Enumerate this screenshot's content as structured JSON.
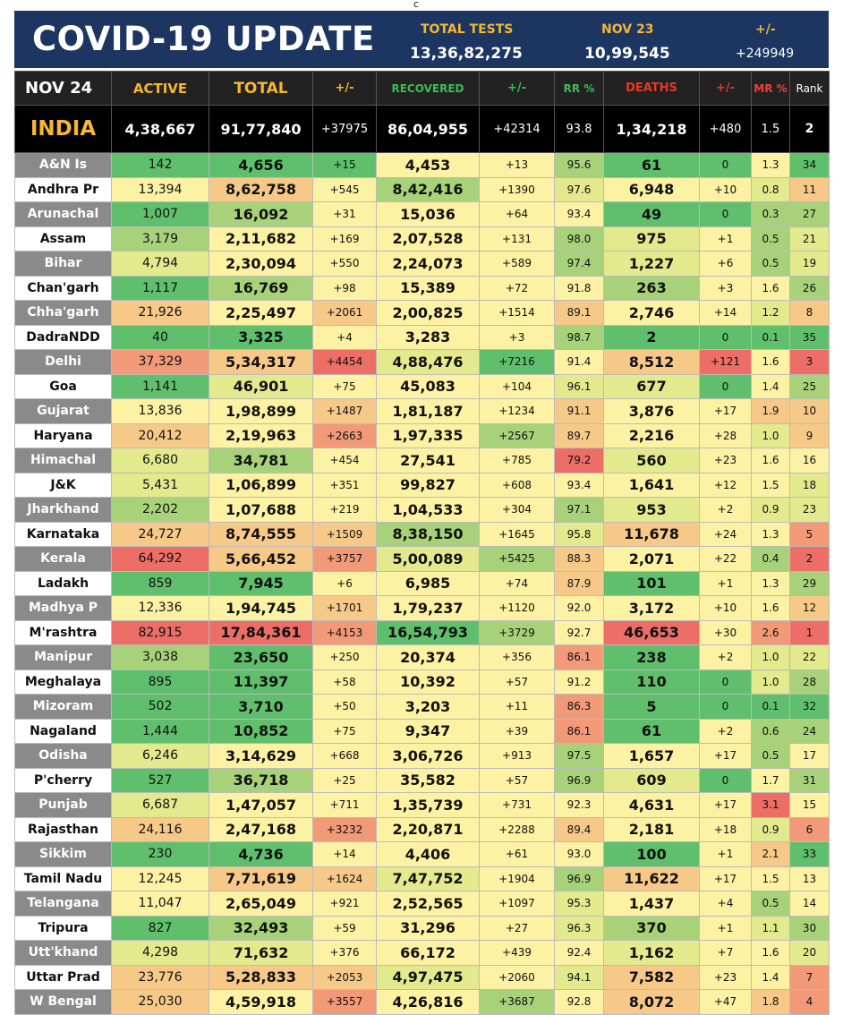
{
  "stamp": "c",
  "header": {
    "title": "COVID-19 UPDATE",
    "total_tests_label": "TOTAL TESTS",
    "total_tests_value": "13,36,82,275",
    "date_label": "NOV 23",
    "date_value": "10,99,545",
    "delta_label": "+/-",
    "delta_value": "+249949"
  },
  "columns": {
    "date": "NOV 24",
    "active": "ACTIVE",
    "total": "TOTAL",
    "total_delta": "+/-",
    "recovered": "RECOVERED",
    "recovered_delta": "+/-",
    "rr": "RR %",
    "deaths": "DEATHS",
    "deaths_delta": "+/-",
    "mr": "MR %",
    "rank": "Rank"
  },
  "colors": {
    "banner": "#1d3561",
    "label_yellow": "#f5b82e",
    "recovered_green": "#3dbb54",
    "deaths_red": "#e8382a",
    "mr_red": "#ef4136",
    "heat_scale": [
      "#5fbf6c",
      "#a8d27a",
      "#e3e98d",
      "#fdf1a3",
      "#f7c989",
      "#f29a77",
      "#ec6e66"
    ]
  },
  "national": {
    "name": "INDIA",
    "active": "4,38,667",
    "total": "91,77,840",
    "total_delta": "+37975",
    "recovered": "86,04,955",
    "recovered_delta": "+42314",
    "rr": "93.8",
    "deaths": "1,34,218",
    "deaths_delta": "+480",
    "mr": "1.5",
    "rank": "2"
  },
  "rows": [
    {
      "name": "A&N Is",
      "active": "142",
      "total": "4,656",
      "total_delta": "+15",
      "recovered": "4,453",
      "recovered_delta": "+13",
      "rr": "95.6",
      "deaths": "61",
      "deaths_delta": "0",
      "mr": "1.3",
      "rank": "34",
      "h": [
        0,
        0,
        0,
        3,
        3,
        1,
        0,
        0,
        3,
        0
      ]
    },
    {
      "name": "Andhra Pr",
      "active": "13,394",
      "total": "8,62,758",
      "total_delta": "+545",
      "recovered": "8,42,416",
      "recovered_delta": "+1390",
      "rr": "97.6",
      "deaths": "6,948",
      "deaths_delta": "+10",
      "mr": "0.8",
      "rank": "11",
      "h": [
        3,
        4,
        3,
        1,
        3,
        2,
        3,
        3,
        2,
        4
      ]
    },
    {
      "name": "Arunachal",
      "active": "1,007",
      "total": "16,092",
      "total_delta": "+31",
      "recovered": "15,036",
      "recovered_delta": "+64",
      "rr": "93.4",
      "deaths": "49",
      "deaths_delta": "0",
      "mr": "0.3",
      "rank": "27",
      "h": [
        0,
        1,
        3,
        3,
        3,
        3,
        0,
        0,
        1,
        1
      ]
    },
    {
      "name": "Assam",
      "active": "3,179",
      "total": "2,11,682",
      "total_delta": "+169",
      "recovered": "2,07,528",
      "recovered_delta": "+131",
      "rr": "98.0",
      "deaths": "975",
      "deaths_delta": "+1",
      "mr": "0.5",
      "rank": "21",
      "h": [
        1,
        3,
        3,
        3,
        3,
        1,
        2,
        3,
        1,
        2
      ]
    },
    {
      "name": "Bihar",
      "active": "4,794",
      "total": "2,30,094",
      "total_delta": "+550",
      "recovered": "2,24,073",
      "recovered_delta": "+589",
      "rr": "97.4",
      "deaths": "1,227",
      "deaths_delta": "+6",
      "mr": "0.5",
      "rank": "19",
      "h": [
        2,
        3,
        3,
        3,
        3,
        1,
        2,
        3,
        1,
        2
      ]
    },
    {
      "name": "Chan'garh",
      "active": "1,117",
      "total": "16,769",
      "total_delta": "+98",
      "recovered": "15,389",
      "recovered_delta": "+72",
      "rr": "91.8",
      "deaths": "263",
      "deaths_delta": "+3",
      "mr": "1.6",
      "rank": "26",
      "h": [
        0,
        1,
        3,
        3,
        3,
        3,
        1,
        3,
        3,
        1
      ]
    },
    {
      "name": "Chha'garh",
      "active": "21,926",
      "total": "2,25,497",
      "total_delta": "+2061",
      "recovered": "2,00,825",
      "recovered_delta": "+1514",
      "rr": "89.1",
      "deaths": "2,746",
      "deaths_delta": "+14",
      "mr": "1.2",
      "rank": "8",
      "h": [
        4,
        3,
        4,
        3,
        3,
        4,
        3,
        3,
        2,
        4
      ]
    },
    {
      "name": "DadraNDD",
      "active": "40",
      "total": "3,325",
      "total_delta": "+4",
      "recovered": "3,283",
      "recovered_delta": "+3",
      "rr": "98.7",
      "deaths": "2",
      "deaths_delta": "0",
      "mr": "0.1",
      "rank": "35",
      "h": [
        0,
        0,
        3,
        3,
        3,
        1,
        0,
        0,
        0,
        0
      ]
    },
    {
      "name": "Delhi",
      "active": "37,329",
      "total": "5,34,317",
      "total_delta": "+4454",
      "recovered": "4,88,476",
      "recovered_delta": "+7216",
      "rr": "91.4",
      "deaths": "8,512",
      "deaths_delta": "+121",
      "mr": "1.6",
      "rank": "3",
      "h": [
        5,
        4,
        6,
        2,
        0,
        3,
        4,
        6,
        3,
        6
      ]
    },
    {
      "name": "Goa",
      "active": "1,141",
      "total": "46,901",
      "total_delta": "+75",
      "recovered": "45,083",
      "recovered_delta": "+104",
      "rr": "96.1",
      "deaths": "677",
      "deaths_delta": "0",
      "mr": "1.4",
      "rank": "25",
      "h": [
        0,
        2,
        3,
        3,
        3,
        2,
        2,
        0,
        3,
        1
      ]
    },
    {
      "name": "Gujarat",
      "active": "13,836",
      "total": "1,98,899",
      "total_delta": "+1487",
      "recovered": "1,81,187",
      "recovered_delta": "+1234",
      "rr": "91.1",
      "deaths": "3,876",
      "deaths_delta": "+17",
      "mr": "1.9",
      "rank": "10",
      "h": [
        3,
        3,
        4,
        3,
        3,
        4,
        3,
        3,
        4,
        4
      ]
    },
    {
      "name": "Haryana",
      "active": "20,412",
      "total": "2,19,963",
      "total_delta": "+2663",
      "recovered": "1,97,335",
      "recovered_delta": "+2567",
      "rr": "89.7",
      "deaths": "2,216",
      "deaths_delta": "+28",
      "mr": "1.0",
      "rank": "9",
      "h": [
        4,
        3,
        5,
        3,
        1,
        4,
        3,
        3,
        2,
        4
      ]
    },
    {
      "name": "Himachal",
      "active": "6,680",
      "total": "34,781",
      "total_delta": "+454",
      "recovered": "27,541",
      "recovered_delta": "+785",
      "rr": "79.2",
      "deaths": "560",
      "deaths_delta": "+23",
      "mr": "1.6",
      "rank": "16",
      "h": [
        2,
        1,
        3,
        3,
        3,
        6,
        2,
        3,
        3,
        3
      ]
    },
    {
      "name": "J&K",
      "active": "5,431",
      "total": "1,06,899",
      "total_delta": "+351",
      "recovered": "99,827",
      "recovered_delta": "+608",
      "rr": "93.4",
      "deaths": "1,641",
      "deaths_delta": "+12",
      "mr": "1.5",
      "rank": "18",
      "h": [
        2,
        3,
        3,
        3,
        3,
        3,
        3,
        3,
        3,
        2
      ]
    },
    {
      "name": "Jharkhand",
      "active": "2,202",
      "total": "1,07,688",
      "total_delta": "+219",
      "recovered": "1,04,533",
      "recovered_delta": "+304",
      "rr": "97.1",
      "deaths": "953",
      "deaths_delta": "+2",
      "mr": "0.9",
      "rank": "23",
      "h": [
        1,
        3,
        3,
        3,
        3,
        1,
        2,
        3,
        2,
        2
      ]
    },
    {
      "name": "Karnataka",
      "active": "24,727",
      "total": "8,74,555",
      "total_delta": "+1509",
      "recovered": "8,38,150",
      "recovered_delta": "+1645",
      "rr": "95.8",
      "deaths": "11,678",
      "deaths_delta": "+24",
      "mr": "1.3",
      "rank": "5",
      "h": [
        4,
        4,
        4,
        1,
        3,
        2,
        4,
        3,
        3,
        5
      ]
    },
    {
      "name": "Kerala",
      "active": "64,292",
      "total": "5,66,452",
      "total_delta": "+3757",
      "recovered": "5,00,089",
      "recovered_delta": "+5425",
      "rr": "88.3",
      "deaths": "2,071",
      "deaths_delta": "+22",
      "mr": "0.4",
      "rank": "2",
      "h": [
        6,
        4,
        5,
        2,
        1,
        4,
        3,
        3,
        1,
        6
      ]
    },
    {
      "name": "Ladakh",
      "active": "859",
      "total": "7,945",
      "total_delta": "+6",
      "recovered": "6,985",
      "recovered_delta": "+74",
      "rr": "87.9",
      "deaths": "101",
      "deaths_delta": "+1",
      "mr": "1.3",
      "rank": "29",
      "h": [
        0,
        0,
        3,
        3,
        3,
        4,
        0,
        3,
        3,
        1
      ]
    },
    {
      "name": "Madhya P",
      "active": "12,336",
      "total": "1,94,745",
      "total_delta": "+1701",
      "recovered": "1,79,237",
      "recovered_delta": "+1120",
      "rr": "92.0",
      "deaths": "3,172",
      "deaths_delta": "+10",
      "mr": "1.6",
      "rank": "12",
      "h": [
        3,
        3,
        4,
        3,
        3,
        3,
        3,
        3,
        3,
        4
      ]
    },
    {
      "name": "M'rashtra",
      "active": "82,915",
      "total": "17,84,361",
      "total_delta": "+4153",
      "recovered": "16,54,793",
      "recovered_delta": "+3729",
      "rr": "92.7",
      "deaths": "46,653",
      "deaths_delta": "+30",
      "mr": "2.6",
      "rank": "1",
      "h": [
        6,
        6,
        5,
        0,
        1,
        3,
        6,
        3,
        5,
        6
      ]
    },
    {
      "name": "Manipur",
      "active": "3,038",
      "total": "23,650",
      "total_delta": "+250",
      "recovered": "20,374",
      "recovered_delta": "+356",
      "rr": "86.1",
      "deaths": "238",
      "deaths_delta": "+2",
      "mr": "1.0",
      "rank": "22",
      "h": [
        1,
        0,
        3,
        3,
        3,
        5,
        0,
        3,
        2,
        2
      ]
    },
    {
      "name": "Meghalaya",
      "active": "895",
      "total": "11,397",
      "total_delta": "+58",
      "recovered": "10,392",
      "recovered_delta": "+57",
      "rr": "91.2",
      "deaths": "110",
      "deaths_delta": "0",
      "mr": "1.0",
      "rank": "28",
      "h": [
        0,
        0,
        3,
        3,
        3,
        3,
        0,
        0,
        2,
        1
      ]
    },
    {
      "name": "Mizoram",
      "active": "502",
      "total": "3,710",
      "total_delta": "+50",
      "recovered": "3,203",
      "recovered_delta": "+11",
      "rr": "86.3",
      "deaths": "5",
      "deaths_delta": "0",
      "mr": "0.1",
      "rank": "32",
      "h": [
        0,
        0,
        3,
        3,
        3,
        5,
        0,
        0,
        0,
        0
      ]
    },
    {
      "name": "Nagaland",
      "active": "1,444",
      "total": "10,852",
      "total_delta": "+75",
      "recovered": "9,347",
      "recovered_delta": "+39",
      "rr": "86.1",
      "deaths": "61",
      "deaths_delta": "+2",
      "mr": "0.6",
      "rank": "24",
      "h": [
        0,
        0,
        3,
        3,
        3,
        5,
        0,
        3,
        1,
        1
      ]
    },
    {
      "name": "Odisha",
      "active": "6,246",
      "total": "3,14,629",
      "total_delta": "+668",
      "recovered": "3,06,726",
      "recovered_delta": "+913",
      "rr": "97.5",
      "deaths": "1,657",
      "deaths_delta": "+17",
      "mr": "0.5",
      "rank": "17",
      "h": [
        2,
        3,
        3,
        3,
        3,
        1,
        3,
        3,
        1,
        3
      ]
    },
    {
      "name": "P'cherry",
      "active": "527",
      "total": "36,718",
      "total_delta": "+25",
      "recovered": "35,582",
      "recovered_delta": "+57",
      "rr": "96.9",
      "deaths": "609",
      "deaths_delta": "0",
      "mr": "1.7",
      "rank": "31",
      "h": [
        0,
        1,
        3,
        3,
        3,
        1,
        2,
        0,
        3,
        1
      ]
    },
    {
      "name": "Punjab",
      "active": "6,687",
      "total": "1,47,057",
      "total_delta": "+711",
      "recovered": "1,35,739",
      "recovered_delta": "+731",
      "rr": "92.3",
      "deaths": "4,631",
      "deaths_delta": "+17",
      "mr": "3.1",
      "rank": "15",
      "h": [
        2,
        3,
        3,
        3,
        3,
        3,
        3,
        3,
        6,
        3
      ]
    },
    {
      "name": "Rajasthan",
      "active": "24,116",
      "total": "2,47,168",
      "total_delta": "+3232",
      "recovered": "2,20,871",
      "recovered_delta": "+2288",
      "rr": "89.4",
      "deaths": "2,181",
      "deaths_delta": "+18",
      "mr": "0.9",
      "rank": "6",
      "h": [
        4,
        3,
        5,
        3,
        3,
        4,
        3,
        3,
        2,
        5
      ]
    },
    {
      "name": "Sikkim",
      "active": "230",
      "total": "4,736",
      "total_delta": "+14",
      "recovered": "4,406",
      "recovered_delta": "+61",
      "rr": "93.0",
      "deaths": "100",
      "deaths_delta": "+1",
      "mr": "2.1",
      "rank": "33",
      "h": [
        0,
        0,
        3,
        3,
        3,
        3,
        0,
        3,
        4,
        0
      ]
    },
    {
      "name": "Tamil Nadu",
      "active": "12,245",
      "total": "7,71,619",
      "total_delta": "+1624",
      "recovered": "7,47,752",
      "recovered_delta": "+1904",
      "rr": "96.9",
      "deaths": "11,622",
      "deaths_delta": "+17",
      "mr": "1.5",
      "rank": "13",
      "h": [
        3,
        4,
        4,
        2,
        3,
        1,
        4,
        3,
        3,
        3
      ]
    },
    {
      "name": "Telangana",
      "active": "11,047",
      "total": "2,65,049",
      "total_delta": "+921",
      "recovered": "2,52,565",
      "recovered_delta": "+1097",
      "rr": "95.3",
      "deaths": "1,437",
      "deaths_delta": "+4",
      "mr": "0.5",
      "rank": "14",
      "h": [
        3,
        3,
        3,
        3,
        3,
        2,
        3,
        3,
        1,
        3
      ]
    },
    {
      "name": "Tripura",
      "active": "827",
      "total": "32,493",
      "total_delta": "+59",
      "recovered": "31,296",
      "recovered_delta": "+27",
      "rr": "96.3",
      "deaths": "370",
      "deaths_delta": "+1",
      "mr": "1.1",
      "rank": "30",
      "h": [
        0,
        1,
        3,
        3,
        3,
        2,
        1,
        3,
        2,
        1
      ]
    },
    {
      "name": "Utt'khand",
      "active": "4,298",
      "total": "71,632",
      "total_delta": "+376",
      "recovered": "66,172",
      "recovered_delta": "+439",
      "rr": "92.4",
      "deaths": "1,162",
      "deaths_delta": "+7",
      "mr": "1.6",
      "rank": "20",
      "h": [
        2,
        2,
        3,
        3,
        3,
        3,
        2,
        3,
        3,
        2
      ]
    },
    {
      "name": "Uttar Prad",
      "active": "23,776",
      "total": "5,28,833",
      "total_delta": "+2053",
      "recovered": "4,97,475",
      "recovered_delta": "+2060",
      "rr": "94.1",
      "deaths": "7,582",
      "deaths_delta": "+23",
      "mr": "1.4",
      "rank": "7",
      "h": [
        4,
        4,
        4,
        2,
        3,
        2,
        4,
        3,
        3,
        5
      ]
    },
    {
      "name": "W Bengal",
      "active": "25,030",
      "total": "4,59,918",
      "total_delta": "+3557",
      "recovered": "4,26,816",
      "recovered_delta": "+3687",
      "rr": "92.8",
      "deaths": "8,072",
      "deaths_delta": "+47",
      "mr": "1.8",
      "rank": "4",
      "h": [
        4,
        3,
        5,
        3,
        1,
        3,
        4,
        3,
        4,
        5
      ]
    }
  ]
}
